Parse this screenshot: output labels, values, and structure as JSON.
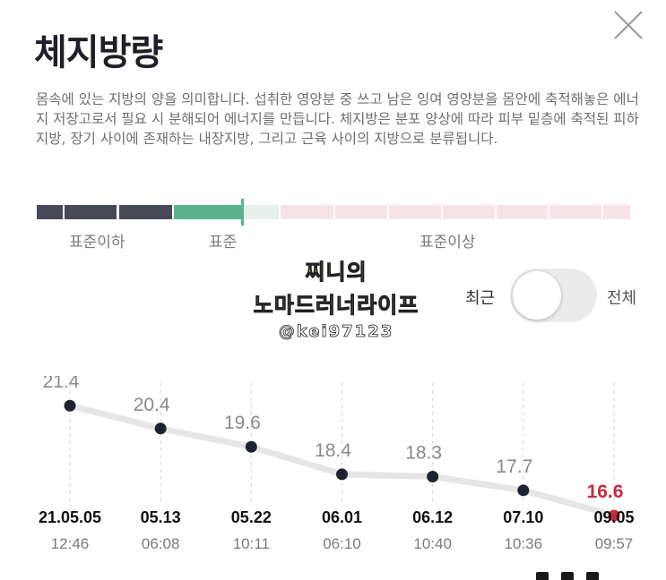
{
  "header": {
    "title": "체지방량"
  },
  "description": "몸속에 있는 지방의 양을 의미합니다. 섭취한 영양분 중 쓰고 남은 잉여 영양분을 몸안에 축적해놓은 에너지 저장고로서 필요 시 분해되어 에너지를 만듭니다. 체지방은 분포 양상에 따라 피부 밑층에 축적된 피하지방, 장기 사이에 존재하는 내장지방, 그리고 근육 사이의 지방으로 분류됩니다.",
  "range_bar": {
    "labels": {
      "below": "표준이하",
      "standard": "표준",
      "above": "표준이상"
    },
    "colors": {
      "below": "#474a56",
      "standard": "#5bb38d",
      "standard_light": "#e5f1ec",
      "above": "#f6e3e8"
    }
  },
  "watermark": {
    "line1": "찌니의",
    "line2": "노마드러너라이프",
    "line3": "@kei97123"
  },
  "toggle": {
    "left_label": "최근",
    "right_label": "전체",
    "state": "off"
  },
  "chart_data": {
    "type": "line",
    "x": [
      "21.05.05",
      "05.13",
      "05.22",
      "06.01",
      "06.12",
      "07.10",
      "09.05"
    ],
    "x_sub": [
      "12:46",
      "06:08",
      "10:11",
      "06:10",
      "10:40",
      "10:36",
      "09:57"
    ],
    "values": [
      21.4,
      20.4,
      19.6,
      18.4,
      18.3,
      17.7,
      16.6
    ],
    "ylim": [
      16.1,
      22.7
    ],
    "grid": "vertical-dashed",
    "colors": {
      "line": "#e6e6e6",
      "point": "#1f2233",
      "last_point": "#c62b3b"
    }
  }
}
